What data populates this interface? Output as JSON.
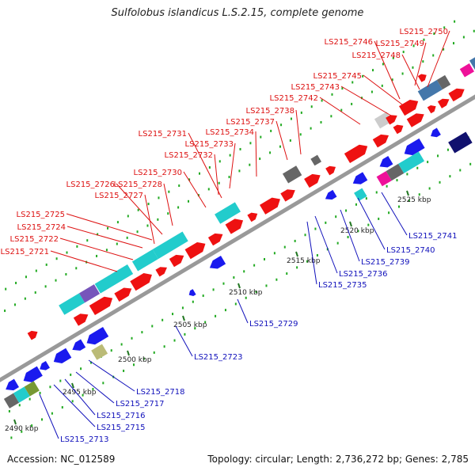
{
  "title": "Sulfolobus islandicus L.S.2.15, complete genome",
  "footer": {
    "accession": "Accession: NC_012589",
    "summary": "Topology: circular; Length: 2,736,272 bp; Genes: 2,785"
  },
  "colors": {
    "backbone": "#999999",
    "tick_major": "#227722",
    "tick_minor": "#22aa22",
    "forward_label": "#dd1111",
    "reverse_label": "#1111bb",
    "forward_gene": "#ee1111",
    "reverse_gene": "#1a1aee",
    "cyan": "#22cccc",
    "purple": "#7755bb",
    "dark_grey": "#666666",
    "light_grey": "#cccccc",
    "magenta": "#ee1199",
    "steel_blue": "#4477aa",
    "navy": "#11116e",
    "slate": "#444477",
    "olive": "#bbbb77",
    "olive_dark": "#779933"
  },
  "scale": {
    "unit": "kbp",
    "major_ticks": [
      "2490 kbp",
      "2495 kbp",
      "2500 kbp",
      "2505 kbp",
      "2510 kbp",
      "2515 kbp",
      "2520 kbp",
      "2525 kbp"
    ]
  },
  "forward_labels": [
    "LS215_2721",
    "LS215_2722",
    "LS215_2724",
    "LS215_2725",
    "LS215_2726",
    "LS215_2727",
    "LS215_2728",
    "LS215_2730",
    "LS215_2732",
    "LS215_2733",
    "LS215_2731",
    "LS215_2734",
    "LS215_2737",
    "LS215_2738",
    "LS215_2742",
    "LS215_2743",
    "LS215_2745",
    "LS215_2748",
    "LS215_2746",
    "LS215_2749",
    "LS215_2750"
  ],
  "reverse_labels": [
    "LS215_2713",
    "LS215_2715",
    "LS215_2716",
    "LS215_2717",
    "LS215_2718",
    "LS215_2723",
    "LS215_2729",
    "LS215_2735",
    "LS215_2736",
    "LS215_2739",
    "LS215_2740",
    "LS215_2741"
  ]
}
